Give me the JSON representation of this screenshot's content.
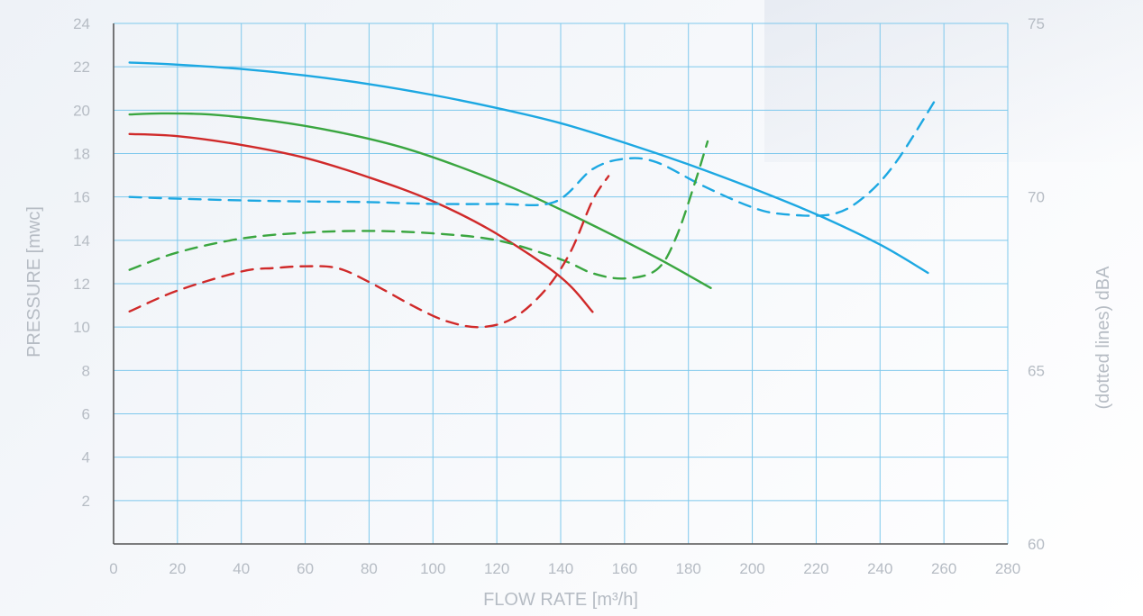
{
  "chart_data": {
    "type": "line",
    "title": "",
    "xlabel": "FLOW RATE [m³/h]",
    "ylabel": "PRESSURE [mwc]",
    "y2label": "(dotted lines) dBA",
    "xlim": [
      0,
      280
    ],
    "ylim": [
      0,
      24
    ],
    "y2lim": [
      60,
      75
    ],
    "x_ticks": [
      "0",
      "20",
      "40",
      "60",
      "80",
      "100",
      "120",
      "140",
      "160",
      "180",
      "200",
      "220",
      "240",
      "260",
      "280"
    ],
    "y_ticks": [
      "2",
      "4",
      "6",
      "8",
      "10",
      "12",
      "14",
      "16",
      "18",
      "20",
      "22",
      "24"
    ],
    "y2_ticks": [
      "60",
      "65",
      "70",
      "75"
    ],
    "grid": true,
    "series": [
      {
        "axis": "left",
        "style": "solid",
        "color": "#1da8e2",
        "x": [
          5,
          20,
          40,
          60,
          80,
          100,
          120,
          140,
          160,
          180,
          200,
          220,
          240,
          255
        ],
        "y": [
          22.2,
          22.1,
          21.9,
          21.6,
          21.2,
          20.7,
          20.1,
          19.4,
          18.5,
          17.5,
          16.4,
          15.2,
          13.8,
          12.5
        ]
      },
      {
        "axis": "left",
        "style": "solid",
        "color": "#3aa640",
        "x": [
          5,
          15,
          30,
          50,
          70,
          90,
          110,
          130,
          150,
          170,
          187
        ],
        "y": [
          19.8,
          19.85,
          19.8,
          19.5,
          19.0,
          18.3,
          17.3,
          16.1,
          14.7,
          13.2,
          11.8
        ]
      },
      {
        "axis": "left",
        "style": "solid",
        "color": "#d02a2a",
        "x": [
          5,
          20,
          40,
          60,
          80,
          100,
          120,
          140,
          150
        ],
        "y": [
          18.9,
          18.8,
          18.4,
          17.8,
          16.9,
          15.8,
          14.3,
          12.3,
          10.7
        ]
      },
      {
        "axis": "right",
        "style": "dashed",
        "color": "#1da8e2",
        "x": [
          5,
          20,
          40,
          60,
          80,
          100,
          120,
          138,
          150,
          160,
          170,
          185,
          200,
          210,
          225,
          235,
          245,
          258
        ],
        "y": [
          70.0,
          69.95,
          69.9,
          69.87,
          69.85,
          69.8,
          69.8,
          69.85,
          70.8,
          71.1,
          71.0,
          70.3,
          69.7,
          69.5,
          69.5,
          70.0,
          71.0,
          72.9
        ]
      },
      {
        "axis": "right",
        "style": "dashed",
        "color": "#3aa640",
        "x": [
          5,
          20,
          40,
          60,
          80,
          100,
          120,
          140,
          150,
          160,
          170,
          176,
          182,
          186
        ],
        "y": [
          67.9,
          68.4,
          68.8,
          68.97,
          69.02,
          68.95,
          68.75,
          68.2,
          67.8,
          67.65,
          67.9,
          68.8,
          70.4,
          71.6
        ]
      },
      {
        "axis": "right",
        "style": "dashed",
        "color": "#d02a2a",
        "x": [
          5,
          20,
          40,
          50,
          60,
          70,
          80,
          95,
          105,
          115,
          125,
          135,
          143,
          150,
          155
        ],
        "y": [
          66.7,
          67.3,
          67.85,
          67.95,
          68.0,
          67.95,
          67.55,
          66.8,
          66.4,
          66.25,
          66.5,
          67.3,
          68.4,
          69.9,
          70.6
        ]
      }
    ]
  }
}
